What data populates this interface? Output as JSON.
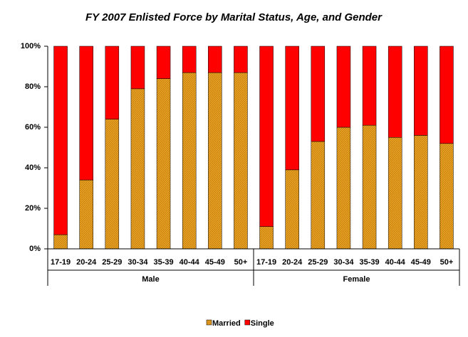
{
  "chart_data": {
    "type": "bar",
    "stacked": true,
    "title": "FY 2007 Enlisted Force by Marital Status, Age, and Gender",
    "groups": [
      {
        "name": "Male",
        "categories": [
          "17-19",
          "20-24",
          "25-29",
          "30-34",
          "35-39",
          "40-44",
          "45-49",
          "50+"
        ]
      },
      {
        "name": "Female",
        "categories": [
          "17-19",
          "20-24",
          "25-29",
          "30-34",
          "35-39",
          "40-44",
          "45-49",
          "50+"
        ]
      }
    ],
    "series": [
      {
        "name": "Married",
        "color": "#e8a020",
        "values": [
          7,
          34,
          64,
          79,
          84,
          87,
          87,
          87,
          11,
          39,
          53,
          60,
          61,
          55,
          56,
          52
        ]
      },
      {
        "name": "Single",
        "color": "#ff0000",
        "values": [
          93,
          66,
          36,
          21,
          16,
          13,
          13,
          13,
          89,
          61,
          47,
          40,
          39,
          45,
          44,
          48
        ]
      }
    ],
    "ylim": [
      0,
      100
    ],
    "yticks": [
      {
        "value": 0,
        "label": "0%"
      },
      {
        "value": 20,
        "label": "20%"
      },
      {
        "value": 40,
        "label": "40%"
      },
      {
        "value": 60,
        "label": "60%"
      },
      {
        "value": 80,
        "label": "80%"
      },
      {
        "value": 100,
        "label": "100%"
      }
    ],
    "legend": "bottom"
  }
}
